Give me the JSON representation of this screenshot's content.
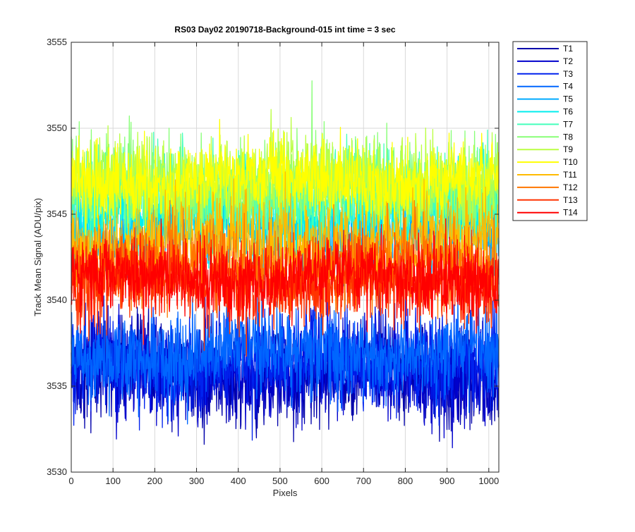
{
  "chart_data": {
    "type": "line",
    "title": "RS03 Day02 20190718-Background-015 int time = 3 sec",
    "xlabel": "Pixels",
    "ylabel": "Track Mean Signal (ADU/pix)",
    "xlim": [
      0,
      1024
    ],
    "ylim": [
      3530,
      3555
    ],
    "xticks": [
      0,
      100,
      200,
      300,
      400,
      500,
      600,
      700,
      800,
      900,
      1000
    ],
    "yticks": [
      3530,
      3535,
      3540,
      3545,
      3550,
      3555
    ],
    "grid": true,
    "legend_position": "outside-top-right",
    "n_points": 1024,
    "series": [
      {
        "name": "T1",
        "color": "#0000AA",
        "mean": 3535.6,
        "noise": 1.4
      },
      {
        "name": "T2",
        "color": "#0000CC",
        "mean": 3536.0,
        "noise": 1.4
      },
      {
        "name": "T3",
        "color": "#0022EE",
        "mean": 3536.4,
        "noise": 1.4
      },
      {
        "name": "T4",
        "color": "#0066FF",
        "mean": 3537.0,
        "noise": 1.3
      },
      {
        "name": "T5",
        "color": "#00AAFF",
        "mean": 3544.0,
        "noise": 1.2
      },
      {
        "name": "T6",
        "color": "#00EEEE",
        "mean": 3545.0,
        "noise": 1.2
      },
      {
        "name": "T7",
        "color": "#44FFBB",
        "mean": 3546.0,
        "noise": 1.3
      },
      {
        "name": "T8",
        "color": "#88FF77",
        "mean": 3546.6,
        "noise": 1.3
      },
      {
        "name": "T9",
        "color": "#BBFF44",
        "mean": 3547.0,
        "noise": 1.2
      },
      {
        "name": "T10",
        "color": "#FFFF00",
        "mean": 3547.0,
        "noise": 1.1
      },
      {
        "name": "T11",
        "color": "#FFBB00",
        "mean": 3543.4,
        "noise": 1.2
      },
      {
        "name": "T12",
        "color": "#FF7700",
        "mean": 3542.0,
        "noise": 1.2
      },
      {
        "name": "T13",
        "color": "#FF3300",
        "mean": 3541.0,
        "noise": 1.2
      },
      {
        "name": "T14",
        "color": "#FF0000",
        "mean": 3541.3,
        "noise": 1.1
      }
    ]
  }
}
